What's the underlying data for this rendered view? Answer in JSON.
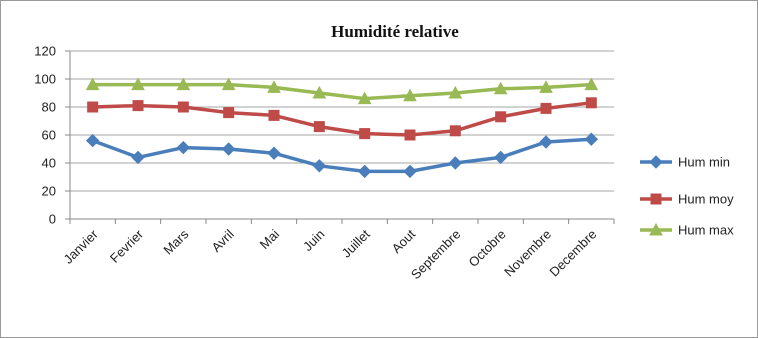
{
  "chart_data": {
    "type": "line",
    "title": "Humidité relative",
    "xlabel": "",
    "ylabel": "",
    "categories": [
      "Janvier",
      "Fevrier",
      "Mars",
      "Avril",
      "Mai",
      "Juin",
      "Juillet",
      "Aout",
      "Septembre",
      "Octobre",
      "Novembre",
      "Decembre"
    ],
    "ylim": [
      0,
      120
    ],
    "yticks": [
      0,
      20,
      40,
      60,
      80,
      100,
      120
    ],
    "grid": true,
    "legend": "right",
    "series": [
      {
        "name": "Hum min",
        "color": "#4a7ebb",
        "marker": "diamond",
        "values": [
          56,
          44,
          51,
          50,
          47,
          38,
          34,
          34,
          40,
          44,
          55,
          57
        ]
      },
      {
        "name": "Hum moy",
        "color": "#be4b48",
        "marker": "square",
        "values": [
          80,
          81,
          80,
          76,
          74,
          66,
          61,
          60,
          63,
          73,
          79,
          83
        ]
      },
      {
        "name": "Hum max",
        "color": "#98b954",
        "marker": "triangle",
        "values": [
          96,
          96,
          96,
          96,
          94,
          90,
          86,
          88,
          90,
          93,
          94,
          96
        ]
      }
    ]
  }
}
